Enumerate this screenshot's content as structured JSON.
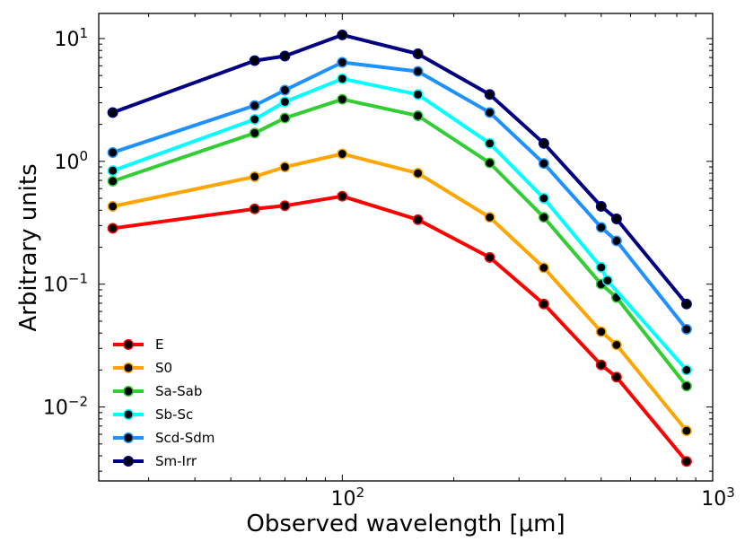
{
  "chart_data": {
    "type": "line",
    "xscale": "log",
    "yscale": "log",
    "xlabel": "Observed wavelength [μm]",
    "ylabel": "Arbitrary units",
    "xlim": [
      22,
      1000
    ],
    "ylim": [
      0.0025,
      16
    ],
    "x_ticks": [
      {
        "value": 100,
        "base": "10",
        "exp": "2"
      },
      {
        "value": 1000,
        "base": "10",
        "exp": "3"
      }
    ],
    "y_ticks": [
      {
        "value": 0.01,
        "base": "10",
        "exp": "−2"
      },
      {
        "value": 0.1,
        "base": "10",
        "exp": "−1"
      },
      {
        "value": 1,
        "base": "10",
        "exp": "0"
      },
      {
        "value": 10,
        "base": "10",
        "exp": "1"
      }
    ],
    "legend_position": "lower-left",
    "x": [
      24,
      58,
      70,
      100,
      160,
      250,
      350,
      500,
      520,
      550,
      850
    ],
    "series": [
      {
        "name": "E",
        "color": "#ff0000",
        "values": [
          0.285,
          0.41,
          0.435,
          0.52,
          0.335,
          0.165,
          0.069,
          0.022,
          null,
          0.0175,
          0.0036
        ]
      },
      {
        "name": "S0",
        "color": "#ffa500",
        "values": [
          0.43,
          0.75,
          0.9,
          1.15,
          0.8,
          0.35,
          0.136,
          0.041,
          null,
          0.032,
          0.0064
        ]
      },
      {
        "name": "Sa-Sab",
        "color": "#32cd32",
        "values": [
          0.69,
          1.7,
          2.25,
          3.2,
          2.35,
          0.97,
          0.35,
          0.1,
          null,
          0.078,
          0.0148
        ]
      },
      {
        "name": "Sb-Sc",
        "color": "#00ffff",
        "values": [
          0.84,
          2.2,
          3.05,
          4.7,
          3.5,
          1.4,
          0.5,
          0.137,
          0.107,
          null,
          0.02
        ]
      },
      {
        "name": "Scd-Sdm",
        "color": "#1e90ff",
        "values": [
          1.18,
          2.85,
          3.8,
          6.4,
          5.4,
          2.5,
          0.96,
          0.29,
          null,
          0.225,
          0.043
        ]
      },
      {
        "name": "Sm-Irr",
        "color": "#000080",
        "values": [
          2.5,
          6.6,
          7.2,
          10.7,
          7.5,
          3.5,
          1.4,
          0.43,
          null,
          0.34,
          0.069
        ]
      }
    ]
  }
}
